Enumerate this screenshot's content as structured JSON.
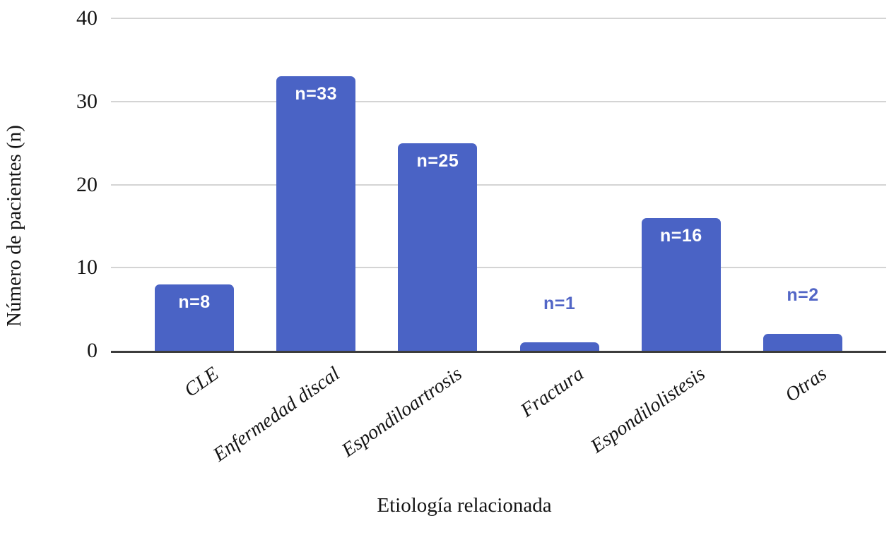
{
  "chart_data": {
    "type": "bar",
    "title": "",
    "xlabel": "Etiología relacionada",
    "ylabel": "Número de pacientes (n)",
    "categories": [
      "CLE",
      "Enfermedad discal",
      "Espondiloartrosis",
      "Fractura",
      "Espondilolistesis",
      "Otras"
    ],
    "values": [
      8,
      33,
      25,
      1,
      16,
      2
    ],
    "bar_labels": [
      "n=8",
      "n=33",
      "n=25",
      "n=1",
      "n=16",
      "n=2"
    ],
    "ylim": [
      0,
      40
    ],
    "yticks": [
      0,
      10,
      20,
      30,
      40
    ],
    "grid": true,
    "legend_position": "none",
    "colors": {
      "bar": "#4a63c5",
      "label_inside": "#ffffff",
      "label_outside": "#5266c6",
      "gridline": "#d4d4d4",
      "axis_line": "#3c3c3c",
      "text": "#141414"
    }
  }
}
